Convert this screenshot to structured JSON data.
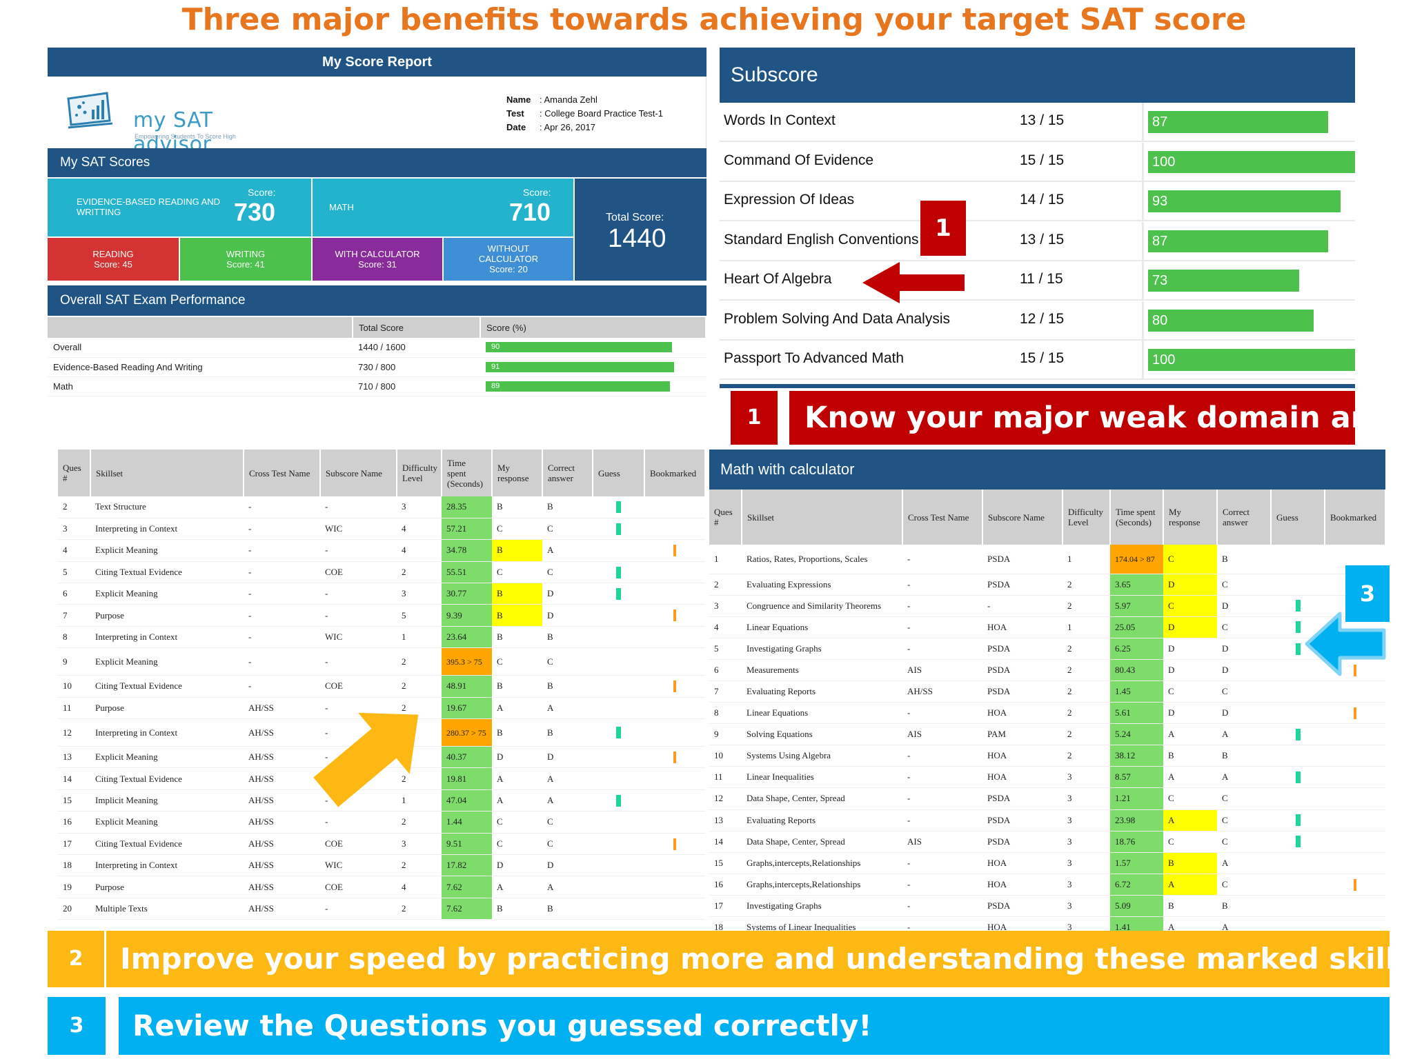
{
  "headline": "Three major benefits towards achieving your target SAT score",
  "report": {
    "title": "My Score Report",
    "logo": {
      "name": "my SAT advisor",
      "tagline": "Empowering Students To Score High"
    },
    "meta": [
      {
        "key": "Name",
        "value": "Amanda Zehl"
      },
      {
        "key": "Test",
        "value": "College Board Practice Test-1"
      },
      {
        "key": "Date",
        "value": "Apr 26, 2017"
      }
    ],
    "sat_scores_label": "My SAT Scores",
    "ebrw": {
      "label": "EVIDENCE-BASED READING AND WRITTING",
      "score_label": "Score:",
      "score": "730"
    },
    "math": {
      "label": "MATH",
      "score_label": "Score:",
      "score": "710"
    },
    "total": {
      "label": "Total Score:",
      "score": "1440"
    },
    "reading": {
      "label": "READING",
      "score": "Score: 45"
    },
    "writing": {
      "label": "WRITING",
      "score": "Score: 41"
    },
    "with_calc": {
      "label": "WITH CALCULATOR",
      "score": "Score: 31"
    },
    "without_calc": {
      "label": "WITHOUT CALCULATOR",
      "score": "Score: 20"
    },
    "performance_label": "Overall SAT Exam Performance",
    "performance_headers": [
      "",
      "Total Score",
      "Score (%)"
    ],
    "performance": [
      {
        "name": "Overall",
        "total": "1440 / 1600",
        "pct": 90,
        "pct_label": "90"
      },
      {
        "name": "Evidence-Based Reading And Writing",
        "total": "730 / 800",
        "pct": 91,
        "pct_label": "91"
      },
      {
        "name": "Math",
        "total": "710 / 800",
        "pct": 89,
        "pct_label": "89"
      }
    ]
  },
  "subscore": {
    "title": "Subscore",
    "rows": [
      {
        "name": "Words In Context",
        "frac": "13 / 15",
        "pct": 87,
        "label": "87"
      },
      {
        "name": "Command Of Evidence",
        "frac": "15 / 15",
        "pct": 100,
        "label": "100"
      },
      {
        "name": "Expression Of Ideas",
        "frac": "14 / 15",
        "pct": 93,
        "label": "93"
      },
      {
        "name": "Standard English Conventions",
        "frac": "13 / 15",
        "pct": 87,
        "label": "87"
      },
      {
        "name": "Heart Of Algebra",
        "frac": "11 / 15",
        "pct": 73,
        "label": "73"
      },
      {
        "name": "Problem Solving And Data Analysis",
        "frac": "12 / 15",
        "pct": 80,
        "label": "80"
      },
      {
        "name": "Passport To Advanced Math",
        "frac": "15 / 15",
        "pct": 100,
        "label": "100"
      }
    ]
  },
  "callouts": {
    "one": {
      "num": "1",
      "text": "Know your major weak domain area"
    },
    "two": {
      "num": "2",
      "text": "Improve your speed by practicing more and understanding these marked  skill sets"
    },
    "three": {
      "num": "3",
      "text": "Review the Questions you guessed correctly!"
    }
  },
  "colors": {
    "accent_orange": "#e8761f",
    "navy": "#1f5485",
    "red": "#c00000",
    "gold": "#fdb813",
    "cyan": "#00b0f0",
    "green": "#4cc14c"
  },
  "reading_table": {
    "headers": [
      "Ques #",
      "Skillset",
      "Cross Test Name",
      "Subscore Name",
      "Difficulty Level",
      "Time spent (Seconds)",
      "My response",
      "Correct answer",
      "Guess",
      "Bookmarked"
    ],
    "rows": [
      {
        "q": "2",
        "skill": "Text Structure",
        "cross": "-",
        "sub": "-",
        "diff": "3",
        "time": "28.35",
        "tc": "g",
        "resp": "B",
        "rc": "",
        "ans": "B",
        "guess": true,
        "book": false
      },
      {
        "q": "3",
        "skill": "Interpreting in Context",
        "cross": "-",
        "sub": "WIC",
        "diff": "4",
        "time": "57.21",
        "tc": "g",
        "resp": "C",
        "rc": "",
        "ans": "C",
        "guess": true,
        "book": false
      },
      {
        "q": "4",
        "skill": "Explicit Meaning",
        "cross": "-",
        "sub": "-",
        "diff": "4",
        "time": "34.78",
        "tc": "g",
        "resp": "B",
        "rc": "y",
        "ans": "A",
        "guess": false,
        "book": true
      },
      {
        "q": "5",
        "skill": "Citing Textual Evidence",
        "cross": "-",
        "sub": "COE",
        "diff": "2",
        "time": "55.51",
        "tc": "g",
        "resp": "C",
        "rc": "",
        "ans": "C",
        "guess": true,
        "book": false
      },
      {
        "q": "6",
        "skill": "Explicit Meaning",
        "cross": "-",
        "sub": "-",
        "diff": "3",
        "time": "30.77",
        "tc": "g",
        "resp": "B",
        "rc": "y",
        "ans": "D",
        "guess": true,
        "book": false
      },
      {
        "q": "7",
        "skill": "Purpose",
        "cross": "-",
        "sub": "-",
        "diff": "5",
        "time": "9.39",
        "tc": "g",
        "resp": "B",
        "rc": "y",
        "ans": "D",
        "guess": false,
        "book": true
      },
      {
        "q": "8",
        "skill": "Interpreting in Context",
        "cross": "-",
        "sub": "WIC",
        "diff": "1",
        "time": "23.64",
        "tc": "g",
        "resp": "B",
        "rc": "",
        "ans": "B",
        "guess": false,
        "book": false
      },
      {
        "q": "9",
        "skill": "Explicit Meaning",
        "cross": "-",
        "sub": "-",
        "diff": "2",
        "time": "395.3 > 75",
        "tc": "o",
        "resp": "C",
        "rc": "",
        "ans": "C",
        "guess": false,
        "book": false
      },
      {
        "q": "10",
        "skill": "Citing Textual Evidence",
        "cross": "-",
        "sub": "COE",
        "diff": "2",
        "time": "48.91",
        "tc": "g",
        "resp": "B",
        "rc": "",
        "ans": "B",
        "guess": false,
        "book": true
      },
      {
        "q": "11",
        "skill": "Purpose",
        "cross": "AH/SS",
        "sub": "-",
        "diff": "2",
        "time": "19.67",
        "tc": "g",
        "resp": "A",
        "rc": "",
        "ans": "A",
        "guess": false,
        "book": false
      },
      {
        "q": "12",
        "skill": "Interpreting in Context",
        "cross": "AH/SS",
        "sub": "-",
        "diff": "4",
        "time": "280.37 > 75",
        "tc": "o",
        "resp": "B",
        "rc": "",
        "ans": "B",
        "guess": true,
        "book": false
      },
      {
        "q": "13",
        "skill": "Explicit Meaning",
        "cross": "AH/SS",
        "sub": "-",
        "diff": "2",
        "time": "40.37",
        "tc": "g",
        "resp": "D",
        "rc": "",
        "ans": "D",
        "guess": false,
        "book": true
      },
      {
        "q": "14",
        "skill": "Citing Textual Evidence",
        "cross": "AH/SS",
        "sub": "COE",
        "diff": "2",
        "time": "19.81",
        "tc": "g",
        "resp": "A",
        "rc": "",
        "ans": "A",
        "guess": false,
        "book": false
      },
      {
        "q": "15",
        "skill": "Implicit Meaning",
        "cross": "AH/SS",
        "sub": "-",
        "diff": "1",
        "time": "47.04",
        "tc": "g",
        "resp": "A",
        "rc": "",
        "ans": "A",
        "guess": true,
        "book": false
      },
      {
        "q": "16",
        "skill": "Explicit Meaning",
        "cross": "AH/SS",
        "sub": "-",
        "diff": "2",
        "time": "1.44",
        "tc": "g",
        "resp": "C",
        "rc": "",
        "ans": "C",
        "guess": false,
        "book": false
      },
      {
        "q": "17",
        "skill": "Citing Textual Evidence",
        "cross": "AH/SS",
        "sub": "COE",
        "diff": "3",
        "time": "9.51",
        "tc": "g",
        "resp": "C",
        "rc": "",
        "ans": "C",
        "guess": false,
        "book": true
      },
      {
        "q": "18",
        "skill": "Interpreting in Context",
        "cross": "AH/SS",
        "sub": "WIC",
        "diff": "2",
        "time": "17.82",
        "tc": "g",
        "resp": "D",
        "rc": "",
        "ans": "D",
        "guess": false,
        "book": false
      },
      {
        "q": "19",
        "skill": "Purpose",
        "cross": "AH/SS",
        "sub": "COE",
        "diff": "4",
        "time": "7.62",
        "tc": "g",
        "resp": "A",
        "rc": "",
        "ans": "A",
        "guess": false,
        "book": false
      },
      {
        "q": "20",
        "skill": "Multiple Texts",
        "cross": "AH/SS",
        "sub": "-",
        "diff": "2",
        "time": "7.62",
        "tc": "g",
        "resp": "B",
        "rc": "",
        "ans": "B",
        "guess": false,
        "book": false
      }
    ]
  },
  "math_table": {
    "title": "Math with calculator",
    "headers": [
      "Ques #",
      "Skillset",
      "Cross Test Name",
      "Subscore Name",
      "Difficulty Level",
      "Time spent (Seconds)",
      "My response",
      "Correct answer",
      "Guess",
      "Bookmarked"
    ],
    "rows": [
      {
        "q": "1",
        "skill": "Ratios, Rates, Proportions, Scales",
        "cross": "-",
        "sub": "PSDA",
        "diff": "1",
        "time": "174.04 > 87",
        "tc": "o",
        "resp": "C",
        "rc": "y",
        "ans": "B",
        "guess": false,
        "book": false
      },
      {
        "q": "2",
        "skill": "Evaluating Expressions",
        "cross": "-",
        "sub": "PSDA",
        "diff": "2",
        "time": "3.65",
        "tc": "g",
        "resp": "D",
        "rc": "y",
        "ans": "C",
        "guess": false,
        "book": false
      },
      {
        "q": "3",
        "skill": "Congruence and Similarity Theorems",
        "cross": "-",
        "sub": "-",
        "diff": "2",
        "time": "5.97",
        "tc": "g",
        "resp": "C",
        "rc": "y",
        "ans": "D",
        "guess": true,
        "book": false
      },
      {
        "q": "4",
        "skill": "Linear Equations",
        "cross": "-",
        "sub": "HOA",
        "diff": "1",
        "time": "25.05",
        "tc": "g",
        "resp": "D",
        "rc": "y",
        "ans": "C",
        "guess": true,
        "book": false
      },
      {
        "q": "5",
        "skill": "Investigating Graphs",
        "cross": "-",
        "sub": "PSDA",
        "diff": "2",
        "time": "6.25",
        "tc": "g",
        "resp": "D",
        "rc": "",
        "ans": "D",
        "guess": true,
        "book": false
      },
      {
        "q": "6",
        "skill": "Measurements",
        "cross": "AIS",
        "sub": "PSDA",
        "diff": "2",
        "time": "80.43",
        "tc": "g",
        "resp": "D",
        "rc": "",
        "ans": "D",
        "guess": false,
        "book": true
      },
      {
        "q": "7",
        "skill": "Evaluating Reports",
        "cross": "AH/SS",
        "sub": "PSDA",
        "diff": "2",
        "time": "1.45",
        "tc": "g",
        "resp": "C",
        "rc": "",
        "ans": "C",
        "guess": false,
        "book": false
      },
      {
        "q": "8",
        "skill": "Linear Equations",
        "cross": "-",
        "sub": "HOA",
        "diff": "2",
        "time": "5.61",
        "tc": "g",
        "resp": "D",
        "rc": "",
        "ans": "D",
        "guess": false,
        "book": true
      },
      {
        "q": "9",
        "skill": "Solving Equations",
        "cross": "AIS",
        "sub": "PAM",
        "diff": "2",
        "time": "5.24",
        "tc": "g",
        "resp": "A",
        "rc": "",
        "ans": "A",
        "guess": true,
        "book": false
      },
      {
        "q": "10",
        "skill": "Systems Using Algebra",
        "cross": "-",
        "sub": "HOA",
        "diff": "2",
        "time": "38.12",
        "tc": "g",
        "resp": "B",
        "rc": "",
        "ans": "B",
        "guess": false,
        "book": false
      },
      {
        "q": "11",
        "skill": " Linear Inequalities",
        "cross": "-",
        "sub": "HOA",
        "diff": "3",
        "time": "8.57",
        "tc": "g",
        "resp": "A",
        "rc": "",
        "ans": "A",
        "guess": true,
        "book": false
      },
      {
        "q": "12",
        "skill": "Data Shape, Center, Spread",
        "cross": "-",
        "sub": "PSDA",
        "diff": "3",
        "time": "1.21",
        "tc": "g",
        "resp": "C",
        "rc": "",
        "ans": "C",
        "guess": false,
        "book": false
      },
      {
        "q": "13",
        "skill": "Evaluating Reports",
        "cross": "-",
        "sub": "PSDA",
        "diff": "3",
        "time": "23.98",
        "tc": "g",
        "resp": "A",
        "rc": "y",
        "ans": "C",
        "guess": true,
        "book": false
      },
      {
        "q": "14",
        "skill": "Data Shape, Center, Spread",
        "cross": "AIS",
        "sub": "PSDA",
        "diff": "3",
        "time": "18.76",
        "tc": "g",
        "resp": "C",
        "rc": "",
        "ans": "C",
        "guess": true,
        "book": false
      },
      {
        "q": "15",
        "skill": "Graphs,intercepts,Relationships",
        "cross": "-",
        "sub": "HOA",
        "diff": "3",
        "time": "1.57",
        "tc": "g",
        "resp": "B",
        "rc": "y",
        "ans": "A",
        "guess": false,
        "book": false
      },
      {
        "q": "16",
        "skill": "Graphs,intercepts,Relationships",
        "cross": "-",
        "sub": "HOA",
        "diff": "3",
        "time": "6.72",
        "tc": "g",
        "resp": "A",
        "rc": "y",
        "ans": "C",
        "guess": false,
        "book": true
      },
      {
        "q": "17",
        "skill": "Investigating Graphs",
        "cross": "-",
        "sub": "PSDA",
        "diff": "3",
        "time": "5.09",
        "tc": "g",
        "resp": "B",
        "rc": "",
        "ans": "B",
        "guess": false,
        "book": false
      },
      {
        "q": "18",
        "skill": "Systems of Linear Inequalities",
        "cross": "-",
        "sub": "HOA",
        "diff": "3",
        "time": "1.41",
        "tc": "g",
        "resp": "A",
        "rc": "",
        "ans": "A",
        "guess": false,
        "book": false
      }
    ]
  }
}
